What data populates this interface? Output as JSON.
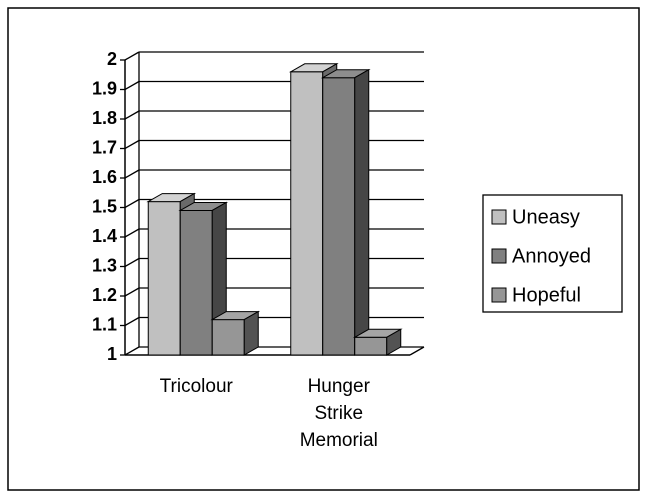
{
  "chart_data": {
    "type": "bar3d",
    "categories": [
      "Tricolour",
      "Hunger Strike Memorial"
    ],
    "series": [
      {
        "name": "Uneasy",
        "color": "#c0c0c0",
        "values": [
          1.52,
          1.96
        ]
      },
      {
        "name": "Annoyed",
        "color": "#808080",
        "values": [
          1.49,
          1.94
        ]
      },
      {
        "name": "Hopeful",
        "color": "#969696",
        "values": [
          1.12,
          1.06
        ]
      }
    ],
    "ylim": [
      1,
      2
    ],
    "yticks": [
      1,
      1.1,
      1.2,
      1.3,
      1.4,
      1.5,
      1.6,
      1.7,
      1.8,
      1.9,
      2
    ],
    "grid": true,
    "legend": "right"
  }
}
